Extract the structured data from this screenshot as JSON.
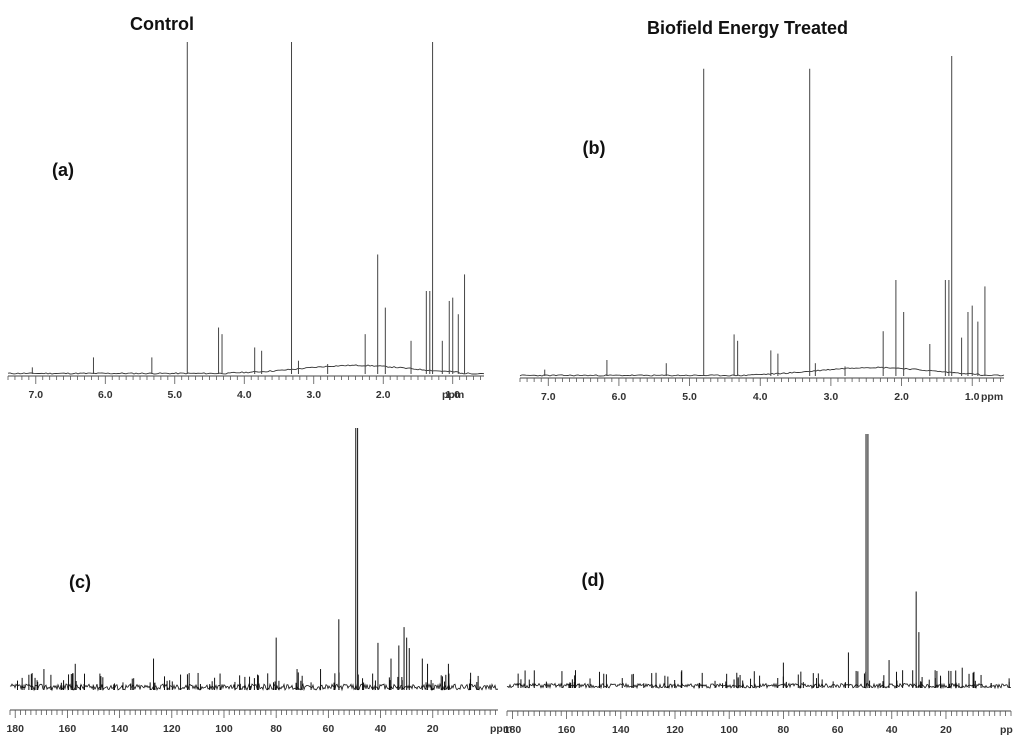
{
  "headings": {
    "control": "Control",
    "treated": "Biofield Energy Treated"
  },
  "chart_data": [
    {
      "type": "line",
      "panel_label": "(a)",
      "xunit": "ppm",
      "xlim": [
        7.4,
        0.55
      ],
      "x_ticks": [
        7.0,
        6.0,
        5.0,
        4.0,
        3.0,
        2.0,
        1.0
      ],
      "x_tick_labels": [
        "7.0",
        "6.0",
        "5.0",
        "4.0",
        "3.0",
        "2.0",
        "1.0"
      ],
      "ylim": [
        0,
        1
      ],
      "peaks": [
        [
          4.82,
          1.0
        ],
        [
          3.32,
          1.0
        ],
        [
          1.29,
          1.0
        ],
        [
          1.33,
          0.25
        ],
        [
          1.38,
          0.25
        ],
        [
          2.08,
          0.36
        ],
        [
          1.97,
          0.2
        ],
        [
          2.26,
          0.12
        ],
        [
          0.83,
          0.3
        ],
        [
          1.0,
          0.23
        ],
        [
          1.05,
          0.22
        ],
        [
          0.92,
          0.18
        ],
        [
          4.37,
          0.14
        ],
        [
          4.32,
          0.12
        ],
        [
          3.85,
          0.08
        ],
        [
          3.75,
          0.07
        ],
        [
          6.17,
          0.05
        ],
        [
          5.33,
          0.05
        ],
        [
          7.05,
          0.02
        ],
        [
          2.8,
          0.03
        ],
        [
          3.22,
          0.04
        ],
        [
          1.6,
          0.1
        ],
        [
          1.15,
          0.1
        ]
      ]
    },
    {
      "type": "line",
      "panel_label": "(b)",
      "xunit": "ppm",
      "xlim": [
        7.4,
        0.55
      ],
      "x_ticks": [
        7.0,
        6.0,
        5.0,
        4.0,
        3.0,
        2.0,
        1.0
      ],
      "x_tick_labels": [
        "7.0",
        "6.0",
        "5.0",
        "4.0",
        "3.0",
        "2.0",
        "1.0"
      ],
      "ylim": [
        0,
        1
      ],
      "peaks": [
        [
          4.8,
          0.96
        ],
        [
          3.3,
          0.96
        ],
        [
          1.29,
          1.0
        ],
        [
          1.33,
          0.3
        ],
        [
          1.38,
          0.3
        ],
        [
          2.08,
          0.3
        ],
        [
          1.97,
          0.2
        ],
        [
          2.26,
          0.14
        ],
        [
          0.82,
          0.28
        ],
        [
          1.0,
          0.22
        ],
        [
          1.06,
          0.2
        ],
        [
          0.92,
          0.17
        ],
        [
          4.37,
          0.13
        ],
        [
          4.32,
          0.11
        ],
        [
          3.85,
          0.08
        ],
        [
          3.75,
          0.07
        ],
        [
          6.17,
          0.05
        ],
        [
          5.33,
          0.04
        ],
        [
          7.05,
          0.02
        ],
        [
          2.8,
          0.03
        ],
        [
          3.22,
          0.04
        ],
        [
          1.6,
          0.1
        ],
        [
          1.15,
          0.12
        ]
      ]
    },
    {
      "type": "line",
      "panel_label": "(c)",
      "xunit": "ppm",
      "xlim": [
        182,
        -5
      ],
      "x_ticks": [
        180,
        160,
        140,
        120,
        100,
        80,
        60,
        40,
        20
      ],
      "x_tick_labels": [
        "180",
        "160",
        "140",
        "120",
        "100",
        "80",
        "60",
        "40",
        "20"
      ],
      "ylim": [
        0,
        1
      ],
      "peaks": [
        [
          49.5,
          1.0
        ],
        [
          48.8,
          1.0
        ],
        [
          56,
          0.27
        ],
        [
          80,
          0.2
        ],
        [
          41,
          0.18
        ],
        [
          31,
          0.24
        ],
        [
          30,
          0.2
        ],
        [
          29,
          0.16
        ],
        [
          33,
          0.17
        ],
        [
          127,
          0.12
        ],
        [
          157,
          0.1
        ],
        [
          169,
          0.08
        ],
        [
          72,
          0.08
        ],
        [
          63,
          0.08
        ],
        [
          36,
          0.12
        ],
        [
          24,
          0.12
        ],
        [
          22,
          0.1
        ],
        [
          14,
          0.1
        ],
        [
          114,
          0.06
        ],
        [
          92,
          0.05
        ]
      ]
    },
    {
      "type": "line",
      "panel_label": "(d)",
      "xunit": "ppm",
      "xlim": [
        182,
        -4
      ],
      "x_ticks": [
        180,
        160,
        140,
        120,
        100,
        80,
        60,
        40,
        20
      ],
      "x_tick_labels": [
        "180",
        "160",
        "140",
        "120",
        "100",
        "80",
        "60",
        "40",
        "20"
      ],
      "ylim": [
        0,
        1
      ],
      "peaks": [
        [
          49.5,
          1.0
        ],
        [
          48.8,
          1.0
        ],
        [
          31,
          0.38
        ],
        [
          30,
          0.22
        ],
        [
          56,
          0.14
        ],
        [
          80,
          0.1
        ],
        [
          41,
          0.11
        ],
        [
          127,
          0.06
        ],
        [
          157,
          0.05
        ],
        [
          24,
          0.07
        ],
        [
          14,
          0.08
        ],
        [
          10,
          0.06
        ],
        [
          36,
          0.07
        ]
      ]
    }
  ]
}
